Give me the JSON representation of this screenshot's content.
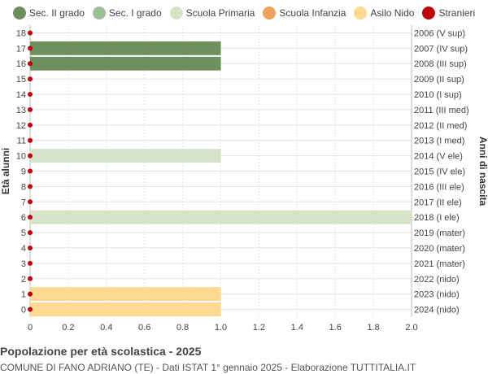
{
  "chart_data": {
    "type": "bar",
    "orientation": "horizontal",
    "title": "Popolazione per età scolastica - 2025",
    "subtitle": "COMUNE DI FANO ADRIANO (TE) - Dati ISTAT 1° gennaio 2025 - Elaborazione TUTTITALIA.IT",
    "ylabel_left": "Età alunni",
    "ylabel_right": "Anni di nascita",
    "xlim": [
      0,
      2.0
    ],
    "x_ticks": [
      "0",
      "0.2",
      "0.4",
      "0.6",
      "0.8",
      "1.0",
      "1.2",
      "1.4",
      "1.6",
      "1.8",
      "2.0"
    ],
    "grid": true,
    "legend_position": "top",
    "legend": [
      {
        "name": "Sec. II grado",
        "color": "#6e8f5e"
      },
      {
        "name": "Sec. I grado",
        "color": "#9fbf96"
      },
      {
        "name": "Scuola Primaria",
        "color": "#d6e3c8"
      },
      {
        "name": "Scuola Infanzia",
        "color": "#eba35f"
      },
      {
        "name": "Asilo Nido",
        "color": "#fdd992"
      },
      {
        "name": "Stranieri",
        "color": "#c0000d"
      }
    ],
    "rows": [
      {
        "age": "18",
        "birth": "2006 (V sup)",
        "value": 0,
        "group": 0,
        "stranieri": 0
      },
      {
        "age": "17",
        "birth": "2007 (IV sup)",
        "value": 1,
        "group": 0,
        "stranieri": 0
      },
      {
        "age": "16",
        "birth": "2008 (III sup)",
        "value": 1,
        "group": 0,
        "stranieri": 0
      },
      {
        "age": "15",
        "birth": "2009 (II sup)",
        "value": 0,
        "group": 0,
        "stranieri": 0
      },
      {
        "age": "14",
        "birth": "2010 (I sup)",
        "value": 0,
        "group": 0,
        "stranieri": 0
      },
      {
        "age": "13",
        "birth": "2011 (III med)",
        "value": 0,
        "group": 1,
        "stranieri": 0
      },
      {
        "age": "12",
        "birth": "2012 (II med)",
        "value": 0,
        "group": 1,
        "stranieri": 0
      },
      {
        "age": "11",
        "birth": "2013 (I med)",
        "value": 0,
        "group": 1,
        "stranieri": 0
      },
      {
        "age": "10",
        "birth": "2014 (V ele)",
        "value": 1,
        "group": 2,
        "stranieri": 0
      },
      {
        "age": "9",
        "birth": "2015 (IV ele)",
        "value": 0,
        "group": 2,
        "stranieri": 0
      },
      {
        "age": "8",
        "birth": "2016 (III ele)",
        "value": 0,
        "group": 2,
        "stranieri": 0
      },
      {
        "age": "7",
        "birth": "2017 (II ele)",
        "value": 0,
        "group": 2,
        "stranieri": 0
      },
      {
        "age": "6",
        "birth": "2018 (I ele)",
        "value": 2,
        "group": 2,
        "stranieri": 0
      },
      {
        "age": "5",
        "birth": "2019 (mater)",
        "value": 0,
        "group": 3,
        "stranieri": 0
      },
      {
        "age": "4",
        "birth": "2020 (mater)",
        "value": 0,
        "group": 3,
        "stranieri": 0
      },
      {
        "age": "3",
        "birth": "2021 (mater)",
        "value": 0,
        "group": 3,
        "stranieri": 0
      },
      {
        "age": "2",
        "birth": "2022 (nido)",
        "value": 0,
        "group": 4,
        "stranieri": 0
      },
      {
        "age": "1",
        "birth": "2023 (nido)",
        "value": 1,
        "group": 4,
        "stranieri": 0
      },
      {
        "age": "0",
        "birth": "2024 (nido)",
        "value": 1,
        "group": 4,
        "stranieri": 0
      }
    ]
  }
}
